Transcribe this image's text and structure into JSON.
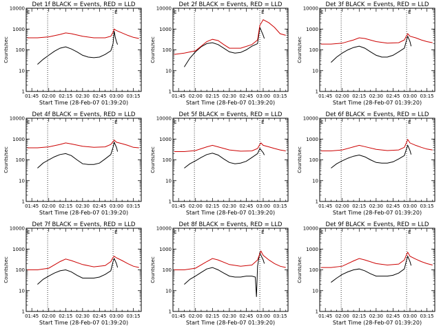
{
  "chart_data": [
    {
      "type": "line",
      "title": "Det 1f BLACK = Events, RED = LLD",
      "xlabel": "Start Time (28-Feb-07 01:39:20)",
      "ylabel": "Counts/sec",
      "y_scale": "log",
      "ylim": [
        1,
        10000
      ],
      "xlim": [
        "01:40",
        "03:22"
      ],
      "x_ticks": [
        "01:45",
        "02:00",
        "02:15",
        "02:30",
        "02:45",
        "03:00",
        "03:15"
      ],
      "y_ticks": [
        "1",
        "10",
        "100",
        "1000",
        "10000"
      ],
      "vlines": [
        "01:59",
        "02:57"
      ],
      "corner_mark": "E",
      "series": [
        {
          "color": "#000000",
          "x": [
            "01:50",
            "01:55",
            "02:00",
            "02:05",
            "02:10",
            "02:15",
            "02:20",
            "02:25",
            "02:30",
            "02:35",
            "02:40",
            "02:45",
            "02:50",
            "02:55",
            "02:56",
            "02:57",
            "02:58",
            "02:59",
            "03:00",
            "03:01"
          ],
          "y": [
            20,
            35,
            55,
            85,
            120,
            140,
            110,
            80,
            55,
            45,
            42,
            45,
            60,
            90,
            130,
            200,
            800,
            400,
            250,
            180
          ]
        },
        {
          "color": "#cc0000",
          "x": [
            "01:41",
            "01:50",
            "02:00",
            "02:10",
            "02:15",
            "02:20",
            "02:30",
            "02:40",
            "02:50",
            "02:55",
            "02:57",
            "02:58",
            "03:00",
            "03:05",
            "03:10",
            "03:15",
            "03:20"
          ],
          "y": [
            380,
            380,
            420,
            550,
            650,
            600,
            450,
            380,
            380,
            450,
            700,
            1000,
            850,
            650,
            500,
            400,
            350
          ]
        }
      ]
    },
    {
      "type": "line",
      "title": "Det 2f BLACK = Events, RED = LLD",
      "xlabel": "Start Time (28-Feb-07 01:39:20)",
      "ylabel": "Counts/sec",
      "y_scale": "log",
      "ylim": [
        1,
        10000
      ],
      "xlim": [
        "01:40",
        "03:22"
      ],
      "x_ticks": [
        "01:45",
        "02:00",
        "02:15",
        "02:30",
        "02:45",
        "03:00",
        "03:15"
      ],
      "y_ticks": [
        "1",
        "10",
        "100",
        "1000",
        "10000"
      ],
      "vlines": [
        "01:59",
        "02:57"
      ],
      "corner_mark": "E",
      "series": [
        {
          "color": "#000000",
          "x": [
            "01:50",
            "01:55",
            "02:00",
            "02:05",
            "02:10",
            "02:15",
            "02:20",
            "02:25",
            "02:30",
            "02:35",
            "02:40",
            "02:45",
            "02:50",
            "02:55",
            "02:57",
            "02:58",
            "03:00",
            "03:01"
          ],
          "y": [
            15,
            40,
            80,
            140,
            200,
            220,
            180,
            120,
            80,
            70,
            75,
            100,
            150,
            200,
            1200,
            900,
            500,
            350
          ]
        },
        {
          "color": "#cc0000",
          "x": [
            "01:41",
            "01:50",
            "02:00",
            "02:05",
            "02:10",
            "02:15",
            "02:20",
            "02:25",
            "02:30",
            "02:40",
            "02:50",
            "02:55",
            "02:57",
            "03:00",
            "03:05",
            "03:10",
            "03:15",
            "03:20"
          ],
          "y": [
            60,
            70,
            90,
            150,
            250,
            320,
            280,
            180,
            120,
            120,
            180,
            300,
            1500,
            2800,
            2000,
            1200,
            600,
            500
          ]
        }
      ]
    },
    {
      "type": "line",
      "title": "Det 3f BLACK = Events, RED = LLD",
      "xlabel": "Start Time (28-Feb-07 01:39:20)",
      "ylabel": "Counts/sec",
      "y_scale": "log",
      "ylim": [
        1,
        10000
      ],
      "xlim": [
        "01:40",
        "03:22"
      ],
      "x_ticks": [
        "01:45",
        "02:00",
        "02:15",
        "02:30",
        "02:45",
        "03:00",
        "03:15"
      ],
      "y_ticks": [
        "1",
        "10",
        "100",
        "1000",
        "10000"
      ],
      "vlines": [
        "01:59",
        "02:57"
      ],
      "corner_mark": "E",
      "series": [
        {
          "color": "#000000",
          "x": [
            "01:50",
            "01:55",
            "02:00",
            "02:05",
            "02:10",
            "02:15",
            "02:20",
            "02:25",
            "02:30",
            "02:35",
            "02:40",
            "02:45",
            "02:50",
            "02:55",
            "02:57",
            "02:58",
            "03:00",
            "03:01"
          ],
          "y": [
            25,
            45,
            70,
            100,
            130,
            150,
            120,
            80,
            55,
            45,
            45,
            55,
            80,
            120,
            300,
            450,
            250,
            150
          ]
        },
        {
          "color": "#cc0000",
          "x": [
            "01:41",
            "01:50",
            "02:00",
            "02:10",
            "02:15",
            "02:20",
            "02:30",
            "02:40",
            "02:50",
            "02:55",
            "02:57",
            "02:58",
            "03:00",
            "03:05",
            "03:10",
            "03:15",
            "03:20"
          ],
          "y": [
            190,
            190,
            210,
            300,
            380,
            350,
            250,
            210,
            220,
            300,
            480,
            600,
            450,
            380,
            300,
            250,
            220
          ]
        }
      ]
    },
    {
      "type": "line",
      "title": "Det 4f BLACK = Events, RED = LLD",
      "xlabel": "Start Time (28-Feb-07 01:39:20)",
      "ylabel": "Counts/sec",
      "y_scale": "log",
      "ylim": [
        1,
        10000
      ],
      "xlim": [
        "01:40",
        "03:22"
      ],
      "x_ticks": [
        "01:45",
        "02:00",
        "02:15",
        "02:30",
        "02:45",
        "03:00",
        "03:15"
      ],
      "y_ticks": [
        "1",
        "10",
        "100",
        "1000",
        "10000"
      ],
      "vlines": [
        "01:59",
        "02:57"
      ],
      "corner_mark": "E",
      "series": [
        {
          "color": "#000000",
          "x": [
            "01:50",
            "01:55",
            "02:00",
            "02:05",
            "02:10",
            "02:15",
            "02:20",
            "02:25",
            "02:30",
            "02:35",
            "02:40",
            "02:45",
            "02:50",
            "02:55",
            "02:57",
            "02:58",
            "03:00",
            "03:01"
          ],
          "y": [
            40,
            70,
            100,
            140,
            180,
            200,
            160,
            100,
            65,
            60,
            60,
            70,
            110,
            180,
            400,
            700,
            400,
            250
          ]
        },
        {
          "color": "#cc0000",
          "x": [
            "01:41",
            "01:50",
            "02:00",
            "02:10",
            "02:15",
            "02:20",
            "02:30",
            "02:40",
            "02:50",
            "02:55",
            "02:57",
            "02:58",
            "03:00",
            "03:05",
            "03:10",
            "03:15",
            "03:20"
          ],
          "y": [
            380,
            380,
            420,
            550,
            650,
            580,
            450,
            400,
            420,
            550,
            750,
            900,
            700,
            600,
            500,
            400,
            380
          ]
        }
      ]
    },
    {
      "type": "line",
      "title": "Det 5f BLACK = Events, RED = LLD",
      "xlabel": "Start Time (28-Feb-07 01:39:20)",
      "ylabel": "Counts/sec",
      "y_scale": "log",
      "ylim": [
        1,
        10000
      ],
      "xlim": [
        "01:40",
        "03:22"
      ],
      "x_ticks": [
        "01:45",
        "02:00",
        "02:15",
        "02:30",
        "02:45",
        "03:00",
        "03:15"
      ],
      "y_ticks": [
        "1",
        "10",
        "100",
        "1000",
        "10000"
      ],
      "vlines": [
        "01:59",
        "02:57"
      ],
      "corner_mark": "E",
      "series": [
        {
          "color": "#000000",
          "x": [
            "01:50",
            "01:55",
            "02:00",
            "02:05",
            "02:10",
            "02:15",
            "02:20",
            "02:25",
            "02:30",
            "02:35",
            "02:40",
            "02:45",
            "02:50",
            "02:55",
            "02:57",
            "02:58",
            "03:00",
            "03:01"
          ],
          "y": [
            40,
            65,
            90,
            130,
            180,
            210,
            170,
            110,
            75,
            65,
            70,
            85,
            130,
            200,
            350,
            300,
            220,
            170
          ]
        },
        {
          "color": "#cc0000",
          "x": [
            "01:41",
            "01:50",
            "02:00",
            "02:10",
            "02:15",
            "02:20",
            "02:30",
            "02:40",
            "02:50",
            "02:55",
            "02:57",
            "02:58",
            "03:00",
            "03:05",
            "03:10",
            "03:15",
            "03:20"
          ],
          "y": [
            250,
            250,
            280,
            420,
            500,
            420,
            300,
            260,
            270,
            350,
            550,
            650,
            500,
            420,
            350,
            300,
            270
          ]
        }
      ]
    },
    {
      "type": "line",
      "title": "Det 6f BLACK = Events, RED = LLD",
      "xlabel": "Start Time (28-Feb-07 01:39:20)",
      "ylabel": "Counts/sec",
      "y_scale": "log",
      "ylim": [
        1,
        10000
      ],
      "xlim": [
        "01:40",
        "03:22"
      ],
      "x_ticks": [
        "01:45",
        "02:00",
        "02:15",
        "02:30",
        "02:45",
        "03:00",
        "03:15"
      ],
      "y_ticks": [
        "1",
        "10",
        "100",
        "1000",
        "10000"
      ],
      "vlines": [
        "01:59",
        "02:57"
      ],
      "corner_mark": "E",
      "series": [
        {
          "color": "#000000",
          "x": [
            "01:50",
            "01:55",
            "02:00",
            "02:05",
            "02:10",
            "02:15",
            "02:20",
            "02:25",
            "02:30",
            "02:35",
            "02:40",
            "02:45",
            "02:50",
            "02:55",
            "02:57",
            "02:58",
            "03:00",
            "03:01"
          ],
          "y": [
            40,
            65,
            90,
            120,
            150,
            170,
            140,
            100,
            75,
            70,
            70,
            80,
            110,
            160,
            350,
            500,
            280,
            180
          ]
        },
        {
          "color": "#cc0000",
          "x": [
            "01:41",
            "01:50",
            "02:00",
            "02:10",
            "02:15",
            "02:20",
            "02:30",
            "02:40",
            "02:50",
            "02:55",
            "02:57",
            "02:58",
            "03:00",
            "03:05",
            "03:10",
            "03:15",
            "03:20"
          ],
          "y": [
            270,
            270,
            300,
            420,
            500,
            430,
            320,
            280,
            300,
            400,
            700,
            950,
            650,
            500,
            400,
            330,
            300
          ]
        }
      ]
    },
    {
      "type": "line",
      "title": "Det 7f BLACK = Events, RED = LLD",
      "xlabel": "Start Time (28-Feb-07 01:39:20)",
      "ylabel": "Counts/sec",
      "y_scale": "log",
      "ylim": [
        1,
        10000
      ],
      "xlim": [
        "01:40",
        "03:22"
      ],
      "x_ticks": [
        "01:45",
        "02:00",
        "02:15",
        "02:30",
        "02:45",
        "03:00",
        "03:15"
      ],
      "y_ticks": [
        "1",
        "10",
        "100",
        "1000",
        "10000"
      ],
      "vlines": [
        "01:59",
        "02:57"
      ],
      "corner_mark": "E",
      "series": [
        {
          "color": "#000000",
          "x": [
            "01:50",
            "01:55",
            "02:00",
            "02:05",
            "02:10",
            "02:15",
            "02:20",
            "02:25",
            "02:30",
            "02:35",
            "02:40",
            "02:45",
            "02:50",
            "02:55",
            "02:57",
            "02:58",
            "03:00",
            "03:01"
          ],
          "y": [
            20,
            35,
            50,
            70,
            90,
            100,
            80,
            55,
            40,
            40,
            40,
            45,
            60,
            90,
            250,
            350,
            200,
            130
          ]
        },
        {
          "color": "#cc0000",
          "x": [
            "01:41",
            "01:50",
            "02:00",
            "02:10",
            "02:15",
            "02:20",
            "02:30",
            "02:40",
            "02:50",
            "02:55",
            "02:57",
            "02:58",
            "03:00",
            "03:05",
            "03:10",
            "03:15",
            "03:20"
          ],
          "y": [
            100,
            100,
            120,
            250,
            330,
            280,
            180,
            140,
            160,
            250,
            400,
            450,
            380,
            280,
            200,
            150,
            130
          ]
        }
      ]
    },
    {
      "type": "line",
      "title": "Det 8f BLACK = Events, RED = LLD",
      "xlabel": "Start Time (28-Feb-07 01:39:20)",
      "ylabel": "Counts/sec",
      "y_scale": "log",
      "ylim": [
        1,
        10000
      ],
      "xlim": [
        "01:40",
        "03:22"
      ],
      "x_ticks": [
        "01:45",
        "02:00",
        "02:15",
        "02:30",
        "02:45",
        "03:00",
        "03:15"
      ],
      "y_ticks": [
        "1",
        "10",
        "100",
        "1000",
        "10000"
      ],
      "vlines": [
        "01:59",
        "02:57"
      ],
      "corner_mark": "E",
      "series": [
        {
          "color": "#000000",
          "x": [
            "01:50",
            "01:55",
            "02:00",
            "02:05",
            "02:10",
            "02:15",
            "02:20",
            "02:25",
            "02:30",
            "02:35",
            "02:40",
            "02:45",
            "02:50",
            "02:53",
            "02:54",
            "02:55",
            "02:57",
            "02:58",
            "03:00",
            "03:01"
          ],
          "y": [
            20,
            35,
            50,
            75,
            110,
            130,
            100,
            70,
            50,
            45,
            45,
            50,
            50,
            45,
            5,
            150,
            700,
            500,
            300,
            200
          ]
        },
        {
          "color": "#cc0000",
          "x": [
            "01:41",
            "01:50",
            "02:00",
            "02:10",
            "02:15",
            "02:20",
            "02:30",
            "02:40",
            "02:50",
            "02:55",
            "02:57",
            "02:58",
            "03:00",
            "03:05",
            "03:10",
            "03:15",
            "03:20"
          ],
          "y": [
            100,
            100,
            120,
            250,
            350,
            300,
            180,
            150,
            170,
            300,
            600,
            800,
            500,
            300,
            200,
            150,
            130
          ]
        }
      ]
    },
    {
      "type": "line",
      "title": "Det 9f BLACK = Events, RED = LLD",
      "xlabel": "Start Time (28-Feb-07 01:39:20)",
      "ylabel": "Counts/sec",
      "y_scale": "log",
      "ylim": [
        1,
        10000
      ],
      "xlim": [
        "01:40",
        "03:22"
      ],
      "x_ticks": [
        "01:45",
        "02:00",
        "02:15",
        "02:30",
        "02:45",
        "03:00",
        "03:15"
      ],
      "y_ticks": [
        "1",
        "10",
        "100",
        "1000",
        "10000"
      ],
      "vlines": [
        "01:59",
        "02:57"
      ],
      "corner_mark": "E",
      "series": [
        {
          "color": "#000000",
          "x": [
            "01:50",
            "01:55",
            "02:00",
            "02:05",
            "02:10",
            "02:15",
            "02:20",
            "02:25",
            "02:30",
            "02:35",
            "02:40",
            "02:45",
            "02:50",
            "02:55",
            "02:57",
            "02:58",
            "03:00",
            "03:01"
          ],
          "y": [
            25,
            40,
            60,
            80,
            100,
            110,
            90,
            65,
            50,
            50,
            50,
            55,
            70,
            110,
            300,
            450,
            250,
            160
          ]
        },
        {
          "color": "#cc0000",
          "x": [
            "01:41",
            "01:50",
            "02:00",
            "02:10",
            "02:15",
            "02:20",
            "02:30",
            "02:40",
            "02:50",
            "02:55",
            "02:57",
            "02:58",
            "03:00",
            "03:05",
            "03:10",
            "03:15",
            "03:20"
          ],
          "y": [
            130,
            130,
            150,
            270,
            350,
            300,
            200,
            170,
            190,
            300,
            550,
            700,
            450,
            330,
            250,
            200,
            170
          ]
        }
      ]
    }
  ]
}
